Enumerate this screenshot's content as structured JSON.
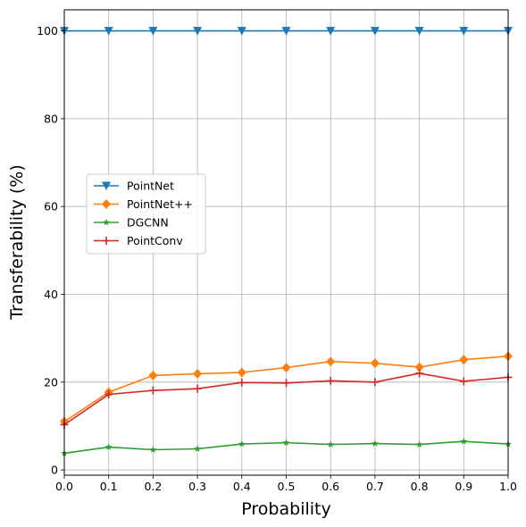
{
  "chart_data": {
    "type": "line",
    "title": "",
    "xlabel": "Probability",
    "ylabel": "Transferability (%)",
    "xlim": [
      0.0,
      1.0
    ],
    "ylim": [
      -1.2,
      104.8
    ],
    "xticks": [
      "0.0",
      "0.1",
      "0.2",
      "0.3",
      "0.4",
      "0.5",
      "0.6",
      "0.7",
      "0.8",
      "0.9",
      "1.0"
    ],
    "yticks": [
      "0",
      "20",
      "40",
      "60",
      "80",
      "100"
    ],
    "grid": true,
    "legend_position": "center-left",
    "x": [
      0.0,
      0.1,
      0.2,
      0.3,
      0.4,
      0.5,
      0.6,
      0.7,
      0.8,
      0.9,
      1.0
    ],
    "series": [
      {
        "name": "PointNet",
        "color": "#1f77b4",
        "marker": "triangle-down",
        "values": [
          100,
          100,
          100,
          100,
          100,
          100,
          100,
          100,
          100,
          100,
          100
        ]
      },
      {
        "name": "PointNet++",
        "color": "#ff7f0e",
        "marker": "diamond",
        "values": [
          11.0,
          17.7,
          21.5,
          21.9,
          22.2,
          23.3,
          24.7,
          24.3,
          23.4,
          25.1,
          25.9
        ]
      },
      {
        "name": "DGCNN",
        "color": "#2ca02c",
        "marker": "star",
        "values": [
          3.8,
          5.2,
          4.6,
          4.8,
          5.9,
          6.2,
          5.8,
          6.0,
          5.8,
          6.5,
          5.9
        ]
      },
      {
        "name": "PointConv",
        "color": "#d62728",
        "marker": "plus",
        "values": [
          10.3,
          17.2,
          18.1,
          18.5,
          19.9,
          19.8,
          20.3,
          20.0,
          22.0,
          20.2,
          21.1
        ]
      }
    ]
  }
}
